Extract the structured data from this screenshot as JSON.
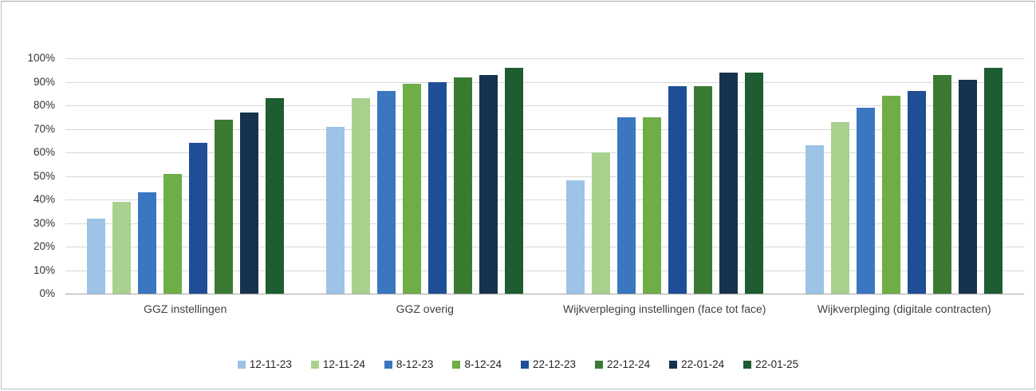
{
  "chart_data": {
    "type": "bar",
    "title": "",
    "categories": [
      "GGZ instellingen",
      "GGZ overig",
      "Wijkverpleging instellingen (face tot face)",
      "Wijkverpleging (digitale contracten)"
    ],
    "series": [
      {
        "name": "12-11-23",
        "color": "#9DC3E6",
        "values": [
          32,
          71,
          48,
          63
        ]
      },
      {
        "name": "12-11-24",
        "color": "#A9D18E",
        "values": [
          39,
          83,
          60,
          73
        ]
      },
      {
        "name": "8-12-23",
        "color": "#3B76C1",
        "values": [
          43,
          86,
          75,
          79
        ]
      },
      {
        "name": "8-12-24",
        "color": "#6FAD47",
        "values": [
          51,
          89,
          75,
          84
        ]
      },
      {
        "name": "22-12-23",
        "color": "#1F4E96",
        "values": [
          64,
          90,
          88,
          86
        ]
      },
      {
        "name": "22-12-24",
        "color": "#3B7A33",
        "values": [
          74,
          92,
          88,
          93
        ]
      },
      {
        "name": "22-01-24",
        "color": "#16324F",
        "values": [
          77,
          93,
          94,
          91
        ]
      },
      {
        "name": "22-01-25",
        "color": "#1E5C31",
        "values": [
          83,
          96,
          94,
          96
        ]
      }
    ],
    "y_axis": {
      "min": 0,
      "max": 100,
      "step": 10,
      "tick_suffix": "%",
      "tick_labels": [
        "0%",
        "10%",
        "20%",
        "30%",
        "40%",
        "50%",
        "60%",
        "70%",
        "80%",
        "90%",
        "100%"
      ]
    },
    "grid": true,
    "legend_position": "bottom"
  },
  "colors": {
    "background": "#FFFFFF",
    "frame_border": "#BFBFBF",
    "gridline": "#D9D9D9",
    "baseline": "#A6A6A6",
    "tick_text": "#333333",
    "category_text": "#3F3F3F",
    "legend_text": "#262626"
  }
}
